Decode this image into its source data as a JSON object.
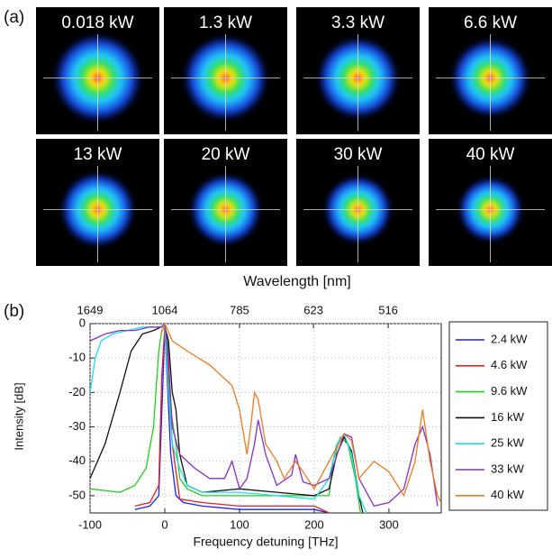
{
  "panel_a": {
    "label": "(a)",
    "images": [
      "0.018 kW",
      "1.3 kW",
      "3.3 kW",
      "6.6 kW",
      "13 kW",
      "20 kW",
      "30 kW",
      "40 kW"
    ]
  },
  "chart_data": {
    "type": "line",
    "panel_label": "(b)",
    "xlabel": "Frequency detuning [THz]",
    "ylabel": "Intensity [dB]",
    "x2label": "Wavelength [nm]",
    "xlim": [
      -100,
      370
    ],
    "xticks": [
      -100,
      0,
      100,
      200,
      300
    ],
    "ylim": [
      -55,
      0
    ],
    "yticks": [
      0,
      -10,
      -20,
      -30,
      -40,
      -50
    ],
    "x2ticks": [
      {
        "value": -100,
        "label": "1649"
      },
      {
        "value": 0,
        "label": "1064"
      },
      {
        "value": 100,
        "label": "785"
      },
      {
        "value": 199,
        "label": "623"
      },
      {
        "value": 299,
        "label": "516"
      }
    ],
    "grid": true,
    "legend": "outside-right",
    "series": [
      {
        "name": "2.4 kW",
        "color": "#1f1fff",
        "x": [
          -40,
          -20,
          -8,
          -3,
          0,
          3,
          8,
          15,
          25,
          50,
          100,
          150,
          200,
          220
        ],
        "values": [
          -54,
          -53,
          -50,
          -20,
          -1,
          -15,
          -38,
          -50,
          -52,
          -53,
          -54,
          -54,
          -54,
          -55
        ]
      },
      {
        "name": "4.6 kW",
        "color": "#e8201c",
        "x": [
          -40,
          -20,
          -8,
          -4,
          0,
          4,
          10,
          20,
          50,
          100,
          150,
          200,
          220
        ],
        "values": [
          -53,
          -52,
          -47,
          -15,
          -1,
          -12,
          -35,
          -51,
          -52,
          -53,
          -53,
          -53,
          -55
        ]
      },
      {
        "name": "9.6 kW",
        "color": "#22d01e",
        "x": [
          -100,
          -60,
          -40,
          -25,
          -15,
          -8,
          -4,
          0,
          4,
          8,
          15,
          20,
          30,
          50,
          100,
          150,
          200,
          220,
          225,
          235,
          245,
          255,
          262,
          270
        ],
        "values": [
          -48,
          -49,
          -47,
          -42,
          -30,
          -8,
          -2,
          -1,
          -5,
          -25,
          -35,
          -45,
          -48,
          -50,
          -50,
          -50,
          -50,
          -50,
          -40,
          -33,
          -35,
          -45,
          -55,
          -55
        ]
      },
      {
        "name": "16 kW",
        "color": "#111111",
        "x": [
          -100,
          -80,
          -60,
          -45,
          -30,
          -15,
          -5,
          0,
          5,
          10,
          15,
          20,
          30,
          50,
          100,
          150,
          200,
          220,
          230,
          240,
          250,
          260,
          265
        ],
        "values": [
          -45,
          -35,
          -20,
          -8,
          -3,
          -2,
          -1,
          -1,
          -5,
          -20,
          -25,
          -38,
          -47,
          -49,
          -48,
          -49,
          -50,
          -48,
          -38,
          -33,
          -37,
          -50,
          -55
        ]
      },
      {
        "name": "25 kW",
        "color": "#19e0e8",
        "x": [
          -100,
          -93,
          -85,
          -70,
          -50,
          -30,
          -10,
          0,
          5,
          10,
          20,
          30,
          50,
          100,
          150,
          200,
          220,
          230,
          240,
          250,
          260,
          270
        ],
        "values": [
          -20,
          -10,
          -5,
          -3,
          -2,
          -1,
          -1,
          -1,
          -20,
          -35,
          -42,
          -47,
          -49,
          -49,
          -50,
          -51,
          -45,
          -35,
          -32,
          -38,
          -50,
          -55
        ]
      },
      {
        "name": "33 kW",
        "color": "#8a2fc4",
        "x": [
          -100,
          -80,
          -60,
          -40,
          -20,
          -5,
          0,
          5,
          10,
          20,
          40,
          60,
          80,
          90,
          100,
          110,
          120,
          125,
          135,
          150,
          170,
          175,
          185,
          200,
          220,
          240,
          250,
          260,
          280,
          300,
          320,
          335,
          345,
          355,
          365
        ],
        "values": [
          -5,
          -3,
          -2,
          -2,
          -1,
          -1,
          0,
          -10,
          -30,
          -38,
          -42,
          -45,
          -45,
          -40,
          -48,
          -45,
          -35,
          -28,
          -38,
          -47,
          -44,
          -38,
          -46,
          -47,
          -45,
          -32,
          -33,
          -45,
          -53,
          -52,
          -48,
          -35,
          -30,
          -38,
          -53
        ]
      },
      {
        "name": "40 kW",
        "color": "#f07a1e",
        "x": [
          -5,
          0,
          10,
          30,
          60,
          90,
          100,
          110,
          115,
          120,
          125,
          135,
          150,
          160,
          175,
          185,
          200,
          220,
          240,
          250,
          260,
          280,
          300,
          320,
          335,
          345,
          355,
          365,
          370
        ],
        "values": [
          -3,
          0,
          -5,
          -8,
          -12,
          -18,
          -25,
          -38,
          -30,
          -20,
          -22,
          -35,
          -40,
          -45,
          -40,
          -43,
          -48,
          -40,
          -32,
          -34,
          -45,
          -40,
          -43,
          -50,
          -40,
          -25,
          -40,
          -50,
          -52
        ]
      }
    ]
  }
}
